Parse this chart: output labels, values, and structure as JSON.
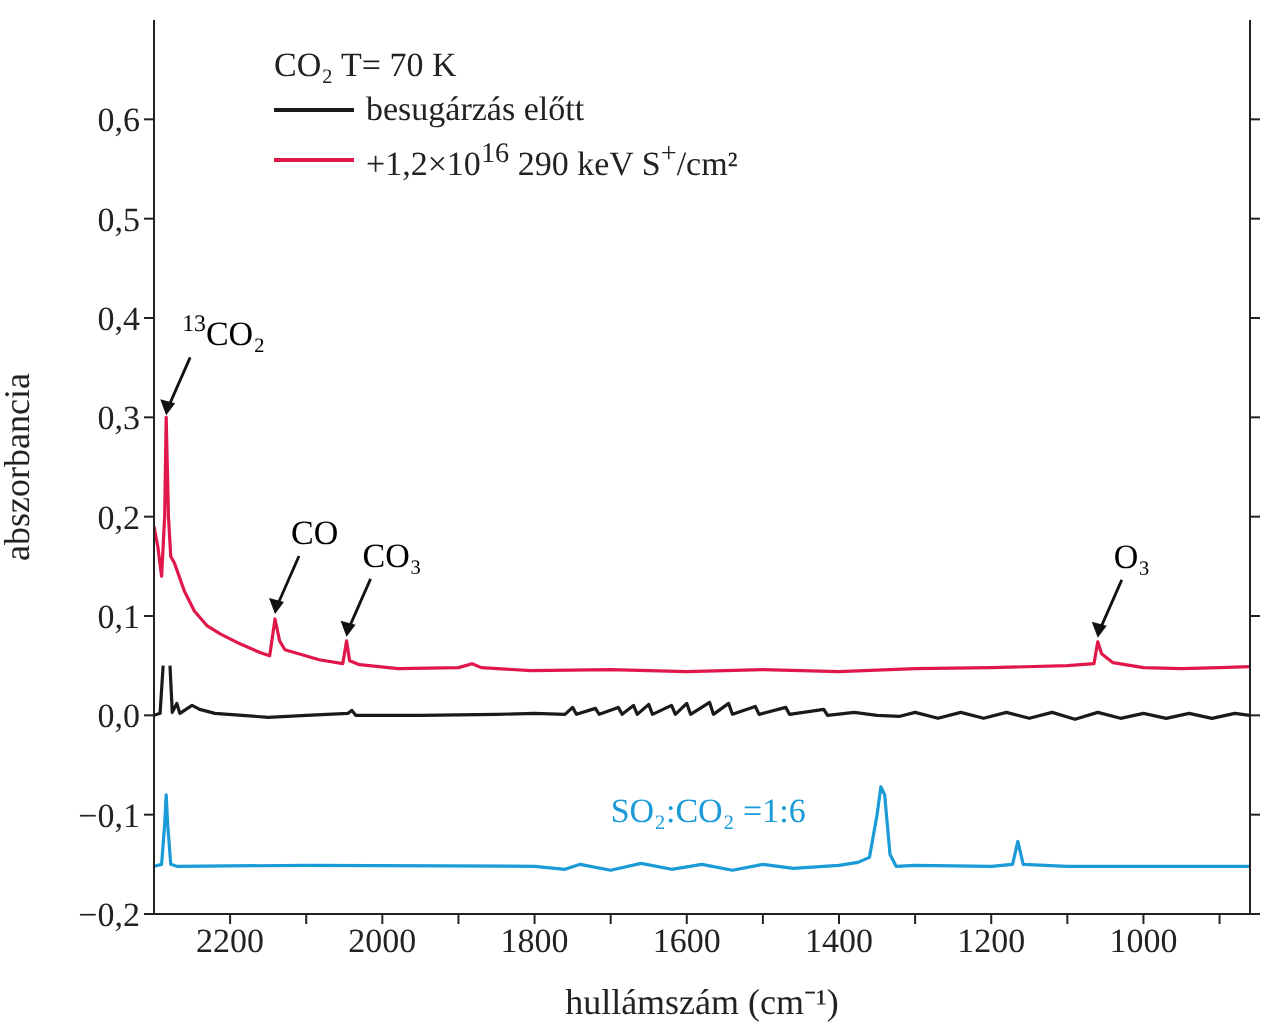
{
  "chart_data": {
    "type": "line",
    "xlabel": "hullámszám (cm⁻¹)",
    "ylabel": "abszorbancia",
    "legend_title": "CO₂ T= 70 K",
    "legend": "top left",
    "marker": "none",
    "line_style": "solid",
    "xlim": [
      2300,
      860
    ],
    "ylim": [
      -0.2,
      0.7
    ],
    "xticks": [
      2200,
      {
        "value": 2100,
        "label": null
      },
      2000,
      {
        "value": 1900,
        "label": null
      },
      1800,
      {
        "value": 1700,
        "label": null
      },
      1600,
      {
        "value": 1500,
        "label": null
      },
      1400,
      {
        "value": 1300,
        "label": null
      },
      1200,
      {
        "value": 1100,
        "label": null
      },
      1000,
      {
        "value": 900,
        "label": null
      }
    ],
    "yticks": [
      {
        "value": -0.2,
        "label": "−0,2"
      },
      {
        "value": -0.1,
        "label": "−0,1"
      },
      {
        "value": 0,
        "label": "0,0"
      },
      {
        "value": 0.1,
        "label": "0,1"
      },
      {
        "value": 0.2,
        "label": "0,2"
      },
      {
        "value": 0.3,
        "label": "0,3"
      },
      {
        "value": 0.4,
        "label": "0,4"
      },
      {
        "value": 0.5,
        "label": "0,5"
      },
      {
        "value": 0.6,
        "label": "0,6"
      }
    ],
    "series": [
      {
        "name": "besugárzás előtt",
        "color": "#1a1a1a",
        "x": [
          2300,
          2292,
          2288,
          2285,
          2282,
          2279,
          2276,
          2270,
          2266,
          2250,
          2240,
          2220,
          2150,
          2100,
          2045,
          2040,
          2035,
          1950,
          1850,
          1800,
          1760,
          1750,
          1745,
          1720,
          1715,
          1690,
          1685,
          1670,
          1665,
          1650,
          1645,
          1620,
          1615,
          1600,
          1595,
          1570,
          1565,
          1545,
          1540,
          1510,
          1505,
          1470,
          1465,
          1420,
          1415,
          1380,
          1350,
          1320,
          1300,
          1270,
          1240,
          1210,
          1180,
          1150,
          1120,
          1090,
          1060,
          1030,
          1000,
          970,
          940,
          910,
          880,
          860
        ],
        "values": [
          0,
          0.002,
          0.05,
          null,
          null,
          0.05,
          0.003,
          0.012,
          0.002,
          0.01,
          0.006,
          0.002,
          -0.002,
          0,
          0.002,
          0.005,
          0,
          0,
          0.001,
          0.002,
          0.001,
          0.008,
          0.001,
          0.007,
          0.001,
          0.008,
          0.001,
          0.01,
          0.001,
          0.011,
          0.001,
          0.01,
          0.001,
          0.012,
          0.001,
          0.013,
          0.001,
          0.012,
          0.001,
          0.009,
          0.001,
          0.008,
          0.001,
          0.006,
          0,
          0.003,
          0,
          -0.001,
          0.003,
          -0.003,
          0.003,
          -0.003,
          0.003,
          -0.003,
          0.003,
          -0.004,
          0.003,
          -0.003,
          0.002,
          -0.003,
          0.002,
          -0.003,
          0.002,
          0
        ]
      },
      {
        "name": "+1,2×10$^{16}$ 290 keV S$^{+}$/cm²",
        "color": "#e0184a",
        "x": [
          2300,
          2295,
          2290,
          2286,
          2284,
          2281,
          2278,
          2273,
          2260,
          2247,
          2230,
          2213,
          2187,
          2160,
          2148,
          2141,
          2135,
          2128,
          2083,
          2052,
          2047,
          2043,
          2030,
          1979,
          1900,
          1882,
          1870,
          1805,
          1700,
          1600,
          1500,
          1400,
          1300,
          1200,
          1100,
          1065,
          1060,
          1055,
          1040,
          1000,
          950,
          900,
          860
        ],
        "values": [
          0.19,
          0.17,
          0.14,
          0.2,
          0.3,
          0.2,
          0.16,
          0.153,
          0.125,
          0.105,
          0.09,
          0.082,
          0.072,
          0.063,
          0.06,
          0.097,
          0.075,
          0.066,
          0.056,
          0.052,
          0.075,
          0.055,
          0.051,
          0.047,
          0.048,
          0.052,
          0.048,
          0.045,
          0.046,
          0.044,
          0.046,
          0.044,
          0.047,
          0.048,
          0.05,
          0.052,
          0.074,
          0.062,
          0.053,
          0.048,
          0.047,
          0.048,
          0.049
        ]
      },
      {
        "name": "SO₂:CO₂ =1:6",
        "color": "#1a9ad6",
        "x": [
          2300,
          2290,
          2286,
          2284,
          2282,
          2278,
          2270,
          2100,
          1800,
          1760,
          1740,
          1700,
          1660,
          1620,
          1580,
          1540,
          1500,
          1460,
          1400,
          1375,
          1360,
          1350,
          1345,
          1340,
          1333,
          1325,
          1300,
          1200,
          1172,
          1165,
          1158,
          1100,
          1000,
          860
        ],
        "values": [
          -0.152,
          -0.15,
          -0.11,
          -0.08,
          -0.11,
          -0.15,
          -0.152,
          -0.151,
          -0.152,
          -0.155,
          -0.15,
          -0.156,
          -0.149,
          -0.155,
          -0.15,
          -0.156,
          -0.15,
          -0.154,
          -0.151,
          -0.148,
          -0.143,
          -0.1,
          -0.072,
          -0.08,
          -0.14,
          -0.152,
          -0.151,
          -0.152,
          -0.15,
          -0.127,
          -0.15,
          -0.152,
          -0.152,
          -0.152
        ]
      }
    ],
    "annotations": [
      {
        "text": "$^{13}$CO₂",
        "x": 2284,
        "y": 0.3
      },
      {
        "text": "CO",
        "x": 2141,
        "y": 0.1
      },
      {
        "text": "CO₃",
        "x": 2047,
        "y": 0.077
      },
      {
        "text": "O₃",
        "x": 1060,
        "y": 0.076
      }
    ]
  }
}
